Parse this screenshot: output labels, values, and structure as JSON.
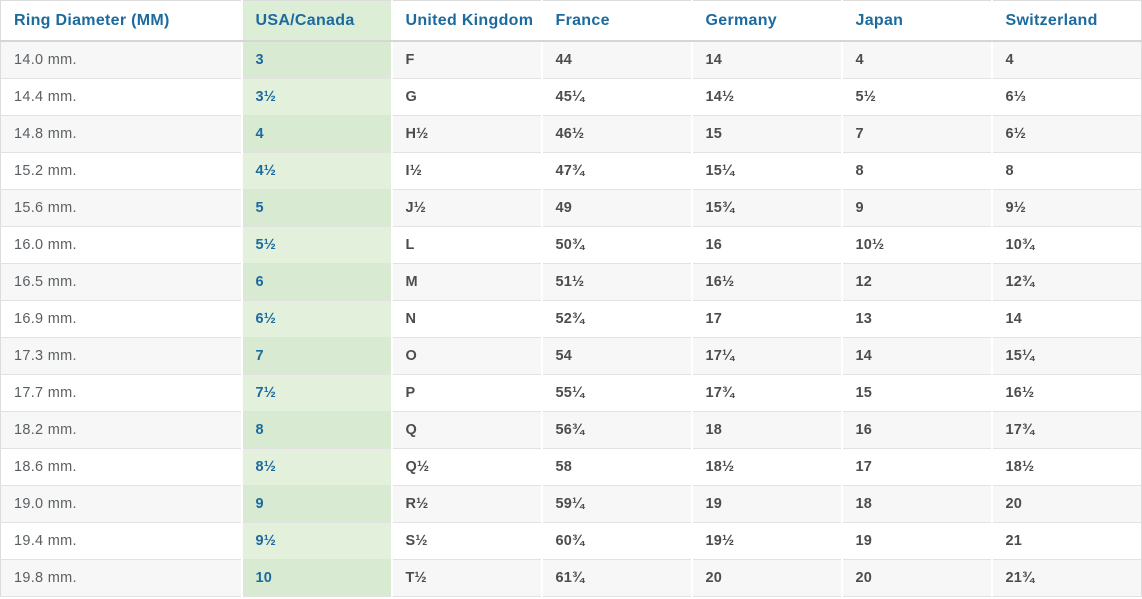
{
  "chart_data": {
    "type": "table",
    "columns": [
      "Ring Diameter (MM)",
      "USA/Canada",
      "United Kingdom",
      "France",
      "Germany",
      "Japan",
      "Switzerland"
    ],
    "column_keys": [
      "diameter",
      "usa_canada",
      "united_kingdom",
      "france",
      "germany",
      "japan",
      "switzerland"
    ],
    "highlighted_column": "USA/Canada",
    "rows": [
      [
        "14.0 mm.",
        "3",
        "F",
        "44",
        "14",
        "4",
        "4"
      ],
      [
        "14.4 mm.",
        "3½",
        "G",
        "45¼",
        "14½",
        "5½",
        "6⅓"
      ],
      [
        "14.8 mm.",
        "4",
        "H½",
        "46½",
        "15",
        "7",
        "6½"
      ],
      [
        "15.2 mm.",
        "4½",
        "I½",
        "47¾",
        "15¼",
        "8",
        "8"
      ],
      [
        "15.6 mm.",
        "5",
        "J½",
        "49",
        "15¾",
        "9",
        "9½"
      ],
      [
        "16.0 mm.",
        "5½",
        "L",
        "50¾",
        "16",
        "10½",
        "10¾"
      ],
      [
        "16.5 mm.",
        "6",
        "M",
        "51½",
        "16½",
        "12",
        "12¾"
      ],
      [
        "16.9 mm.",
        "6½",
        "N",
        "52¾",
        "17",
        "13",
        "14"
      ],
      [
        "17.3 mm.",
        "7",
        "O",
        "54",
        "17¼",
        "14",
        "15¼"
      ],
      [
        "17.7 mm.",
        "7½",
        "P",
        "55¼",
        "17¾",
        "15",
        "16½"
      ],
      [
        "18.2 mm.",
        "8",
        "Q",
        "56¾",
        "18",
        "16",
        "17¾"
      ],
      [
        "18.6 mm.",
        "8½",
        "Q½",
        "58",
        "18½",
        "17",
        "18½"
      ],
      [
        "19.0 mm.",
        "9",
        "R½",
        "59¼",
        "19",
        "18",
        "20"
      ],
      [
        "19.4 mm.",
        "9½",
        "S½",
        "60¾",
        "19½",
        "19",
        "21"
      ],
      [
        "19.8 mm.",
        "10",
        "T½",
        "61¾",
        "20",
        "20",
        "21¾"
      ]
    ]
  },
  "colors": {
    "accent_blue": "#1c6a9e",
    "value_text": "#4d4d4d",
    "diameter_text": "#5a5f63",
    "green_header": "#ddeed6",
    "green_row_on_white": "#e3f1dc",
    "green_row_on_gray": "#d9ead2",
    "row_odd_bg": "#f7f7f7",
    "row_even_bg": "#ffffff",
    "row_border": "#e2e2e2",
    "header_border": "#d6d6d6",
    "outer_border": "#dcdcdc"
  }
}
